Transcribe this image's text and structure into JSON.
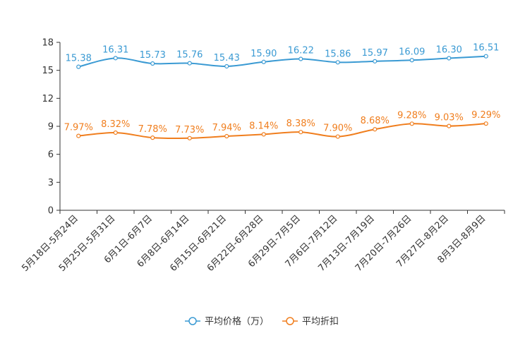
{
  "chart_data": {
    "type": "line",
    "title": "",
    "xlabel": "",
    "ylabel": "",
    "ylim": [
      0,
      18
    ],
    "yticks": [
      0,
      3,
      6,
      9,
      12,
      15,
      18
    ],
    "grid": false,
    "legend_position": "bottom-center",
    "categories": [
      "5月18日-5月24日",
      "5月25日-5月31日",
      "6月1日-6月7日",
      "6月8日-6月14日",
      "6月15日-6月21日",
      "6月22日-6月28日",
      "6月29日-7月5日",
      "7月6日-7月12日",
      "7月13日-7月19日",
      "7月20日-7月26日",
      "7月27日-8月2日",
      "8月3日-8月9日"
    ],
    "series": [
      {
        "name": "平均价格（万）",
        "color": "#3a9ad3",
        "values": [
          15.38,
          16.31,
          15.73,
          15.76,
          15.43,
          15.9,
          16.22,
          15.86,
          15.97,
          16.09,
          16.3,
          16.51
        ],
        "labels": [
          "15.38",
          "16.31",
          "15.73",
          "15.76",
          "15.43",
          "15.90",
          "16.22",
          "15.86",
          "15.97",
          "16.09",
          "16.30",
          "16.51"
        ]
      },
      {
        "name": "平均折扣",
        "color": "#f07e1e",
        "values": [
          7.97,
          8.32,
          7.78,
          7.73,
          7.94,
          8.14,
          8.38,
          7.9,
          8.68,
          9.28,
          9.03,
          9.29
        ],
        "labels": [
          "7.97%",
          "8.32%",
          "7.78%",
          "7.73%",
          "7.94%",
          "8.14%",
          "8.38%",
          "7.90%",
          "8.68%",
          "9.28%",
          "9.03%",
          "9.29%"
        ]
      }
    ]
  }
}
